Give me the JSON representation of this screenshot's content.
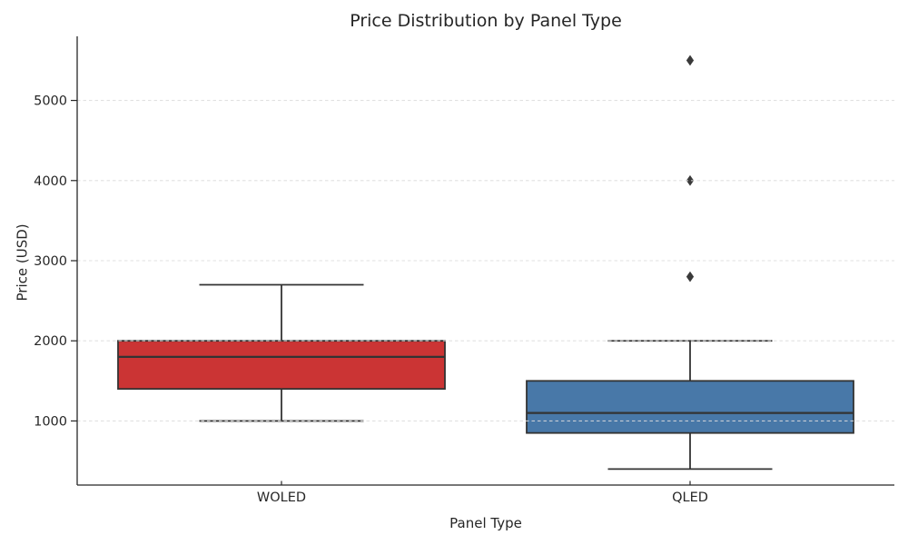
{
  "chart": {
    "title": "Price Distribution by Panel Type",
    "xlabel": "Panel Type",
    "ylabel": "Price (USD)"
  },
  "chart_data": {
    "type": "box",
    "title": "Price Distribution by Panel Type",
    "xlabel": "Panel Type",
    "ylabel": "Price (USD)",
    "categories": [
      "WOLED",
      "QLED"
    ],
    "series": [
      {
        "name": "WOLED",
        "whisker_low": 1000,
        "q1": 1400,
        "median": 1800,
        "q3": 2000,
        "whisker_high": 2700,
        "outliers": [],
        "fill_color": "#cb3434"
      },
      {
        "name": "QLED",
        "whisker_low": 400,
        "q1": 850,
        "median": 1100,
        "q3": 1500,
        "whisker_high": 2000,
        "outliers": [
          2800,
          4000,
          5500
        ],
        "fill_color": "#4878a8"
      }
    ],
    "yticks": [
      1000,
      2000,
      3000,
      4000,
      5000
    ],
    "ylim": [
      200,
      5800
    ],
    "grid": "horizontal, dashed, light-gray, drawn above boxes",
    "legend": false,
    "style": {
      "gridline_color": "#dcdcdc",
      "spine_color": "#262626",
      "box_edge_color": "#333333",
      "outlier_color": "#3a3a3a",
      "outlier_marker": "diamond"
    }
  }
}
